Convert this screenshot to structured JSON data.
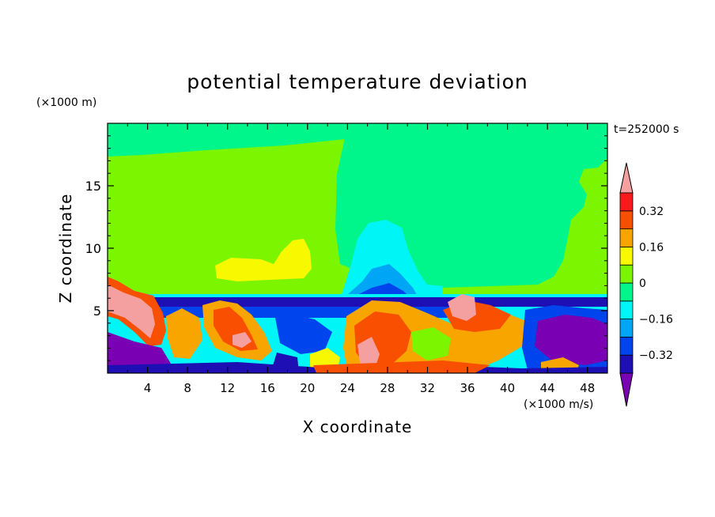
{
  "chart_data": {
    "type": "heatmap",
    "title": "potential temperature deviation",
    "xlabel": "X coordinate",
    "ylabel": "Z coordinate",
    "x_unit": "(×1000 m/s)",
    "y_unit": "(×1000 m)",
    "time_label": "t=252000 s",
    "xlim": [
      0,
      50
    ],
    "ylim": [
      0,
      20
    ],
    "x_ticks": [
      4,
      8,
      12,
      16,
      20,
      24,
      28,
      32,
      36,
      40,
      44,
      48
    ],
    "x_tick_labels": [
      "4",
      "8",
      "12",
      "16",
      "20",
      "24",
      "28",
      "32",
      "36",
      "40",
      "44",
      "48"
    ],
    "y_ticks": [
      5,
      10,
      15
    ],
    "y_tick_labels": [
      "5",
      "10",
      "15"
    ],
    "colorbar": {
      "levels": [
        -0.4,
        -0.32,
        -0.24,
        -0.16,
        -0.08,
        0,
        0.08,
        0.16,
        0.24,
        0.32,
        0.4
      ],
      "tick_labels": [
        "0.32",
        "0.16",
        "0",
        "−0.16",
        "−0.32"
      ],
      "tick_values": [
        0.32,
        0.16,
        0,
        -0.16,
        -0.32
      ],
      "colors": [
        "#7a00b4",
        "#1e0fb4",
        "#0044ee",
        "#00a5f5",
        "#00f6f6",
        "#00f58a",
        "#7cf500",
        "#f8f800",
        "#f8a500",
        "#f85000",
        "#f81a1a",
        "#f5a0a0"
      ],
      "under_color": "#7a00b4",
      "over_color": "#f5a0a0"
    },
    "colors": {
      "band_inversion": "#1e0fb4",
      "neutral_upper": "#00f58a",
      "warm_upper": "#7cf500"
    }
  }
}
